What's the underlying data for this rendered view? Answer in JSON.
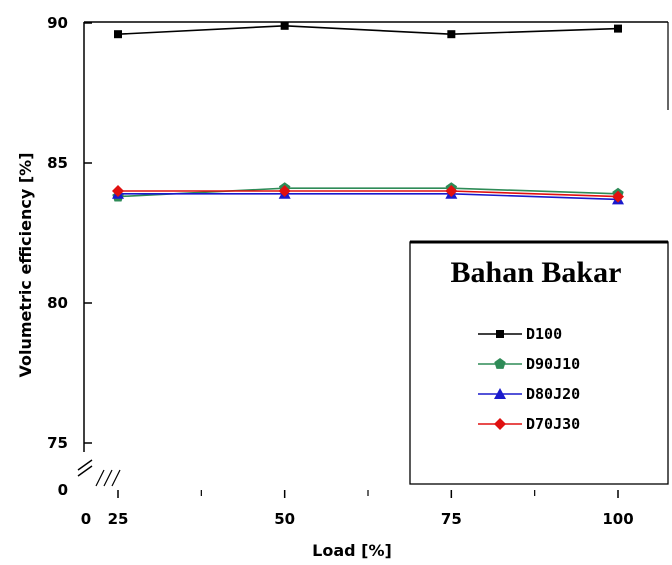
{
  "chart_data": {
    "type": "line",
    "xlabel": "Load [%]",
    "ylabel": "Volumetric efficiency [%]",
    "x": [
      25,
      50,
      75,
      100
    ],
    "x_ticks": [
      "0",
      "25",
      "50",
      "75",
      "100"
    ],
    "y_ticks": [
      "0",
      "75",
      "80",
      "85",
      "90"
    ],
    "xlim": [
      0,
      110
    ],
    "ylim": [
      74.2,
      90
    ],
    "axis_break": {
      "x": true,
      "y": true
    },
    "grid": false,
    "legend": {
      "title": "Bahan Bakar",
      "placement": "bottom-right"
    },
    "series": [
      {
        "name": "D100",
        "marker": "square",
        "color": "#000000",
        "values": [
          89.6,
          89.9,
          89.6,
          89.8
        ]
      },
      {
        "name": "D90J10",
        "marker": "pentagon",
        "color": "#2e8b57",
        "values": [
          83.8,
          84.1,
          84.1,
          83.9
        ]
      },
      {
        "name": "D80J20",
        "marker": "triangle",
        "color": "#1a1acc",
        "values": [
          83.9,
          83.9,
          83.9,
          83.7
        ]
      },
      {
        "name": "D70J30",
        "marker": "diamond",
        "color": "#e01010",
        "values": [
          84.0,
          84.0,
          84.0,
          83.8
        ]
      }
    ]
  }
}
